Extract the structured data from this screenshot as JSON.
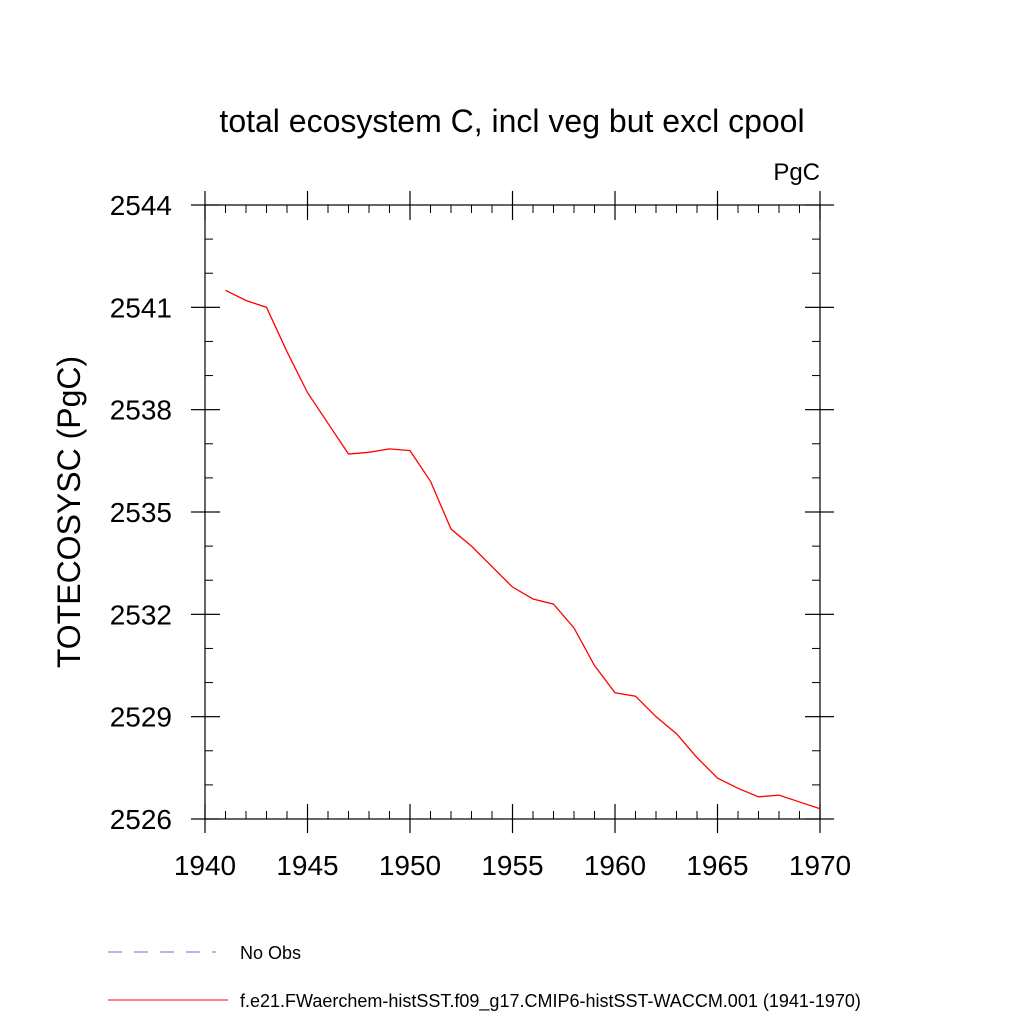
{
  "chart_data": {
    "type": "line",
    "title": "total ecosystem C, incl veg but excl cpool",
    "units_label": "PgC",
    "ylabel": "TOTECOSYSC  (PgC)",
    "xlabel": "",
    "xlim": [
      1940,
      1970
    ],
    "ylim": [
      2526,
      2544
    ],
    "x_ticks": [
      1940,
      1945,
      1950,
      1955,
      1960,
      1965,
      1970
    ],
    "y_ticks": [
      2526,
      2529,
      2532,
      2535,
      2538,
      2541,
      2544
    ],
    "x_minor_step": 1,
    "y_minor_step": 1,
    "grid": false,
    "legend_position": "bottom-left",
    "x": [
      1941,
      1942,
      1943,
      1944,
      1945,
      1946,
      1947,
      1948,
      1949,
      1950,
      1951,
      1952,
      1953,
      1954,
      1955,
      1956,
      1957,
      1958,
      1959,
      1960,
      1961,
      1962,
      1963,
      1964,
      1965,
      1966,
      1967,
      1968,
      1969,
      1970
    ],
    "series": [
      {
        "name": "f.e21.FWaerchem-histSST.f09_g17.CMIP6-histSST-WACCM.001 (1941-1970)",
        "color": "#ff0000",
        "style": "solid",
        "values": [
          2541.5,
          2541.2,
          2541.0,
          2539.7,
          2538.5,
          2537.6,
          2536.7,
          2536.75,
          2536.85,
          2536.8,
          2535.9,
          2534.5,
          2534.0,
          2533.4,
          2532.8,
          2532.45,
          2532.3,
          2531.6,
          2530.5,
          2529.7,
          2529.6,
          2529.0,
          2528.5,
          2527.8,
          2527.2,
          2526.9,
          2526.65,
          2526.7,
          2526.5,
          2526.3
        ]
      }
    ],
    "legend": [
      {
        "label": "No Obs",
        "color": "#7b68c8",
        "style": "dashed"
      },
      {
        "label": "f.e21.FWaerchem-histSST.f09_g17.CMIP6-histSST-WACCM.001 (1941-1970)",
        "color": "#ff0000",
        "style": "solid"
      }
    ]
  }
}
